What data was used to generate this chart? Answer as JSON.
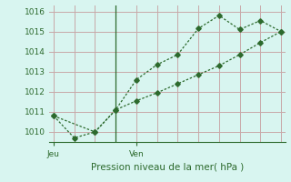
{
  "line1_x": [
    0,
    1,
    2,
    3,
    4,
    5,
    6,
    7,
    8,
    9,
    10,
    11
  ],
  "line1_y": [
    1010.8,
    1009.7,
    1010.0,
    1011.1,
    1012.6,
    1013.35,
    1013.85,
    1015.15,
    1015.8,
    1015.1,
    1015.55,
    1015.0
  ],
  "line2_x": [
    0,
    2,
    3,
    4,
    5,
    6,
    7,
    8,
    9,
    10,
    11
  ],
  "line2_y": [
    1010.8,
    1010.0,
    1011.1,
    1011.55,
    1011.95,
    1012.4,
    1012.85,
    1013.3,
    1013.85,
    1014.45,
    1015.0
  ],
  "line_color": "#2d6a2d",
  "bg_color": "#d8f5f0",
  "grid_color": "#c8a8a8",
  "xlabel": "Pression niveau de la mer( hPa )",
  "xtick_positions": [
    0,
    4
  ],
  "xtick_labels": [
    "Jeu",
    "Ven"
  ],
  "ylim": [
    1009.5,
    1016.3
  ],
  "yticks": [
    1010,
    1011,
    1012,
    1013,
    1014,
    1015,
    1016
  ],
  "xlim": [
    -0.2,
    11.2
  ],
  "vline_x": 3,
  "label_fontsize": 7.5,
  "tick_fontsize": 6.5,
  "n_xgrid": 12
}
